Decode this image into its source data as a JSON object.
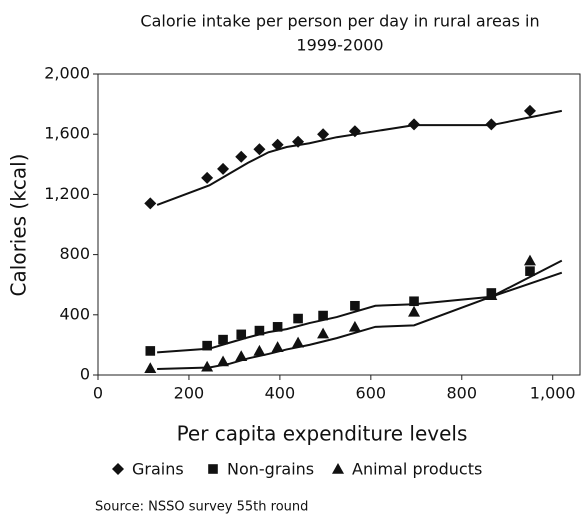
{
  "chart_data": {
    "type": "scatter",
    "title_lines": [
      "Calorie intake per person per day in rural areas in",
      "1999-2000"
    ],
    "x_label": "Per capita expenditure levels",
    "y_label": "Calories (kcal)",
    "source": "Source: NSSO survey 55th round",
    "x": [
      115,
      240,
      275,
      315,
      355,
      395,
      440,
      495,
      565,
      695,
      865,
      950
    ],
    "trend_x": [
      130,
      245,
      290,
      330,
      375,
      415,
      465,
      525,
      610,
      695,
      865,
      1020
    ],
    "series": [
      {
        "name": "Grains",
        "marker": "diamond",
        "color": "#111111",
        "values": [
          1140,
          1310,
          1370,
          1450,
          1500,
          1530,
          1550,
          1600,
          1620,
          1665,
          1665,
          1755
        ],
        "trend": [
          1130,
          1260,
          1340,
          1410,
          1480,
          1515,
          1540,
          1580,
          1620,
          1660,
          1660,
          1755
        ]
      },
      {
        "name": "Non-grains",
        "marker": "square",
        "color": "#111111",
        "values": [
          160,
          195,
          235,
          270,
          295,
          320,
          375,
          395,
          460,
          490,
          545,
          690
        ],
        "trend": [
          150,
          175,
          215,
          250,
          285,
          305,
          345,
          385,
          460,
          470,
          520,
          680
        ]
      },
      {
        "name": "Animal products",
        "marker": "triangle",
        "color": "#111111",
        "values": [
          45,
          55,
          90,
          125,
          160,
          185,
          215,
          275,
          320,
          420,
          530,
          760
        ],
        "trend": [
          40,
          50,
          75,
          110,
          140,
          170,
          200,
          245,
          320,
          330,
          520,
          760
        ]
      }
    ],
    "xlim": [
      0,
      1060
    ],
    "ylim": [
      0,
      2000
    ],
    "xticks": [
      0,
      200,
      400,
      600,
      800,
      {
        "value": 1000,
        "label": "1,000"
      }
    ],
    "yticks": [
      0,
      400,
      800,
      {
        "value": 1200,
        "label": "1,200"
      },
      {
        "value": 1600,
        "label": "1,600"
      },
      {
        "value": 2000,
        "label": "2,000"
      }
    ]
  }
}
